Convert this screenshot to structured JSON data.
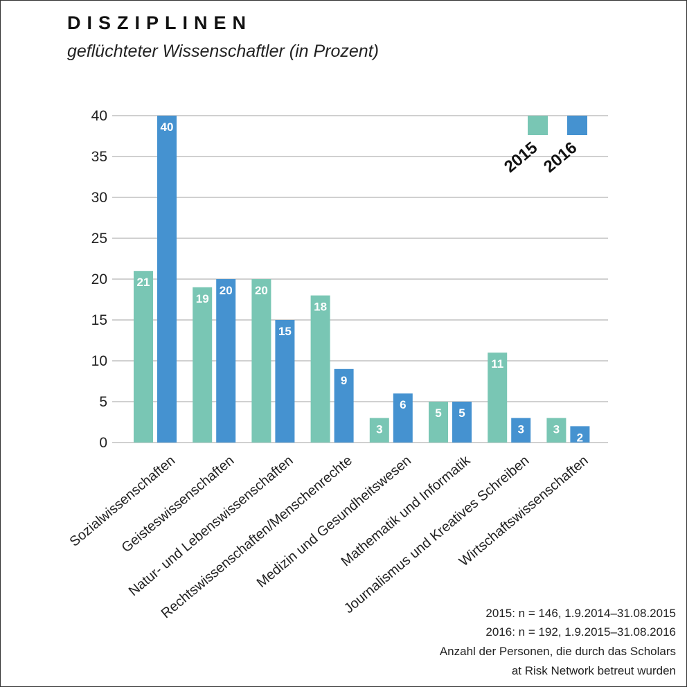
{
  "header": {
    "title": "DISZIPLINEN",
    "subtitle": "geflüchteter Wissenschaftler (in Prozent)"
  },
  "notes": [
    "2015: n = 146, 1.9.2014–31.08.2015",
    "2016: n = 192, 1.9.2015–31.08.2016",
    "Anzahl der Personen, die durch das Scholars",
    "at Risk Network betreut wurden"
  ],
  "colors": {
    "2015": "#79c6b4",
    "2016": "#4592d0",
    "grid": "#b5b5b5",
    "text": "#222222"
  },
  "chart_data": {
    "type": "bar",
    "title": "DISZIPLINEN",
    "subtitle": "geflüchteter Wissenschaftler (in Prozent)",
    "categories": [
      "Sozialwissenschaften",
      "Geisteswissenschaften",
      "Natur- und Lebenswissenschaften",
      "Rechtswissenschaften/Menschenrechte",
      "Medizin und Gesundheitswesen",
      "Mathematik und Informatik",
      "Journalismus und Kreatives Schreiben",
      "Wirtschaftswissenschaften"
    ],
    "series": [
      {
        "name": "2015",
        "values": [
          21,
          19,
          20,
          18,
          3,
          5,
          11,
          3
        ]
      },
      {
        "name": "2016",
        "values": [
          40,
          20,
          15,
          9,
          6,
          5,
          3,
          2
        ]
      }
    ],
    "yticks": [
      "0",
      "5",
      "10",
      "15",
      "20",
      "25",
      "30",
      "35",
      "40"
    ],
    "ylim": [
      0,
      40
    ],
    "grid": true,
    "legend_position": "top-right",
    "data_labels": true
  }
}
